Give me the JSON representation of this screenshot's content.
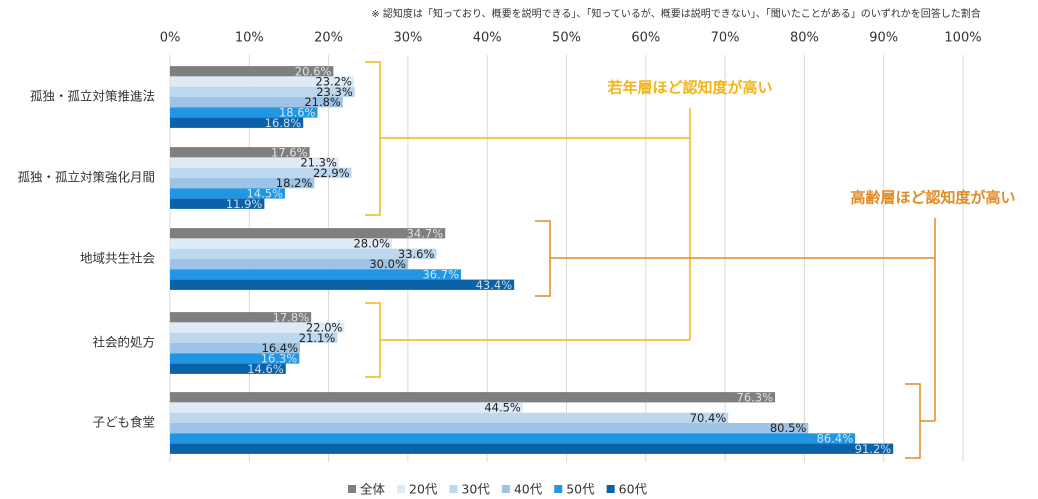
{
  "chart_data": {
    "type": "bar",
    "orientation": "horizontal",
    "note": "※ 認知度は「知っており、概要を説明できる」、「知っているが、概要は説明できない」、「聞いたことがある」のいずれかを回答した割合",
    "categories": [
      "孤独・孤立対策推進法",
      "孤独・孤立対策強化月間",
      "地域共生社会",
      "社会的処方",
      "子ども食堂"
    ],
    "series": [
      {
        "name": "全体",
        "color": "#7f7f7f",
        "values": [
          20.6,
          17.6,
          34.7,
          17.8,
          76.3
        ],
        "value_labels": [
          "20.6%",
          "17.6%",
          "34.7%",
          "17.8%",
          "76.3%"
        ]
      },
      {
        "name": "20代",
        "color": "#deebf7",
        "values": [
          23.2,
          21.3,
          28.0,
          22.0,
          44.5
        ],
        "value_labels": [
          "23.2%",
          "21.3%",
          "28.0%",
          "22.0%",
          "44.5%"
        ]
      },
      {
        "name": "30代",
        "color": "#bdd7ee",
        "values": [
          23.3,
          22.9,
          33.6,
          21.1,
          70.4
        ],
        "value_labels": [
          "23.3%",
          "22.9%",
          "33.6%",
          "21.1%",
          "70.4%"
        ]
      },
      {
        "name": "40代",
        "color": "#9dc3e6",
        "values": [
          21.8,
          18.2,
          30.0,
          16.4,
          80.5
        ],
        "value_labels": [
          "21.8%",
          "18.2%",
          "30.0%",
          "16.4%",
          "80.5%"
        ]
      },
      {
        "name": "50代",
        "color": "#2196e3",
        "values": [
          18.6,
          14.5,
          36.7,
          16.3,
          86.4
        ],
        "value_labels": [
          "18.6%",
          "14.5%",
          "36.7%",
          "16.3%",
          "86.4%"
        ]
      },
      {
        "name": "60代",
        "color": "#0b62a8",
        "values": [
          16.8,
          11.9,
          43.4,
          14.6,
          91.2
        ],
        "value_labels": [
          "16.8%",
          "11.9%",
          "43.4%",
          "14.6%",
          "91.2%"
        ]
      }
    ],
    "xlim": [
      0,
      100
    ],
    "xticks": [
      {
        "value": 0,
        "label": "0%"
      },
      {
        "value": 10,
        "label": "10%"
      },
      {
        "value": 20,
        "label": "20%"
      },
      {
        "value": 30,
        "label": "30%"
      },
      {
        "value": 40,
        "label": "40%"
      },
      {
        "value": 50,
        "label": "50%"
      },
      {
        "value": 60,
        "label": "60%"
      },
      {
        "value": 70,
        "label": "70%"
      },
      {
        "value": 80,
        "label": "80%"
      },
      {
        "value": 90,
        "label": "90%"
      },
      {
        "value": 100,
        "label": "100%"
      }
    ],
    "grid": true,
    "legend": "bottom",
    "annotations": [
      "若年層ほど認知度が高い",
      "高齢層ほど認知度が高い"
    ]
  }
}
